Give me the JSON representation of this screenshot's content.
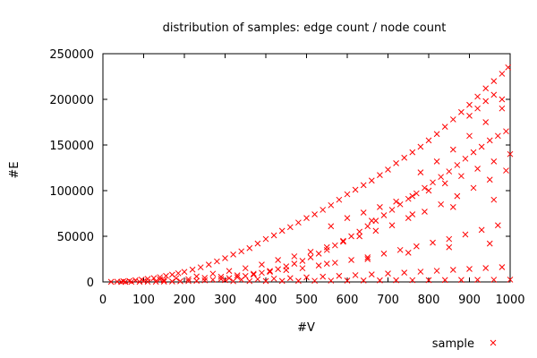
{
  "chart_data": {
    "type": "scatter",
    "title": "distribution of samples: edge count / node count",
    "xlabel": "#V",
    "ylabel": "#E",
    "xlim": [
      0,
      1000
    ],
    "ylim": [
      0,
      250000
    ],
    "x_ticks": [
      "0",
      "100",
      "200",
      "300",
      "400",
      "500",
      "600",
      "700",
      "800",
      "900",
      "1000"
    ],
    "y_ticks": [
      "0",
      "50000",
      "100000",
      "150000",
      "200000",
      "250000"
    ],
    "grid": false,
    "legend": "bottom-right",
    "marker": "x",
    "series": [
      {
        "name": "sample",
        "color": "#ff0000",
        "points": [
          [
            20,
            120
          ],
          [
            35,
            300
          ],
          [
            50,
            700
          ],
          [
            65,
            1100
          ],
          [
            80,
            1800
          ],
          [
            95,
            2500
          ],
          [
            110,
            3300
          ],
          [
            125,
            4200
          ],
          [
            140,
            5200
          ],
          [
            155,
            6600
          ],
          [
            170,
            8000
          ],
          [
            185,
            9500
          ],
          [
            200,
            11000
          ],
          [
            220,
            13500
          ],
          [
            240,
            16000
          ],
          [
            260,
            19000
          ],
          [
            280,
            22500
          ],
          [
            300,
            26000
          ],
          [
            320,
            30000
          ],
          [
            340,
            33500
          ],
          [
            360,
            37000
          ],
          [
            380,
            42000
          ],
          [
            400,
            47000
          ],
          [
            420,
            51000
          ],
          [
            440,
            56000
          ],
          [
            460,
            60000
          ],
          [
            480,
            65000
          ],
          [
            500,
            70000
          ],
          [
            520,
            74000
          ],
          [
            540,
            79000
          ],
          [
            560,
            84000
          ],
          [
            580,
            90000
          ],
          [
            600,
            96000
          ],
          [
            620,
            101000
          ],
          [
            640,
            106000
          ],
          [
            660,
            111000
          ],
          [
            680,
            117000
          ],
          [
            700,
            123000
          ],
          [
            720,
            130000
          ],
          [
            740,
            136000
          ],
          [
            760,
            142000
          ],
          [
            780,
            148000
          ],
          [
            800,
            155000
          ],
          [
            820,
            162000
          ],
          [
            840,
            170000
          ],
          [
            860,
            178000
          ],
          [
            880,
            186000
          ],
          [
            900,
            194000
          ],
          [
            920,
            203000
          ],
          [
            940,
            212000
          ],
          [
            960,
            220000
          ],
          [
            980,
            228000
          ],
          [
            995,
            235000
          ],
          [
            140,
            2800
          ],
          [
            180,
            4100
          ],
          [
            230,
            6000
          ],
          [
            270,
            9000
          ],
          [
            310,
            12000
          ],
          [
            350,
            15000
          ],
          [
            390,
            19000
          ],
          [
            430,
            24000
          ],
          [
            470,
            28000
          ],
          [
            510,
            33000
          ],
          [
            550,
            38000
          ],
          [
            590,
            44000
          ],
          [
            630,
            50000
          ],
          [
            670,
            56000
          ],
          [
            710,
            62000
          ],
          [
            750,
            70000
          ],
          [
            790,
            77000
          ],
          [
            830,
            85000
          ],
          [
            870,
            94000
          ],
          [
            910,
            103000
          ],
          [
            950,
            112000
          ],
          [
            990,
            122000
          ],
          [
            100,
            900
          ],
          [
            150,
            1800
          ],
          [
            210,
            3000
          ],
          [
            250,
            4400
          ],
          [
            290,
            5600
          ],
          [
            330,
            7200
          ],
          [
            370,
            9000
          ],
          [
            410,
            11000
          ],
          [
            450,
            13000
          ],
          [
            490,
            15000
          ],
          [
            530,
            18000
          ],
          [
            570,
            21000
          ],
          [
            610,
            24000
          ],
          [
            650,
            27000
          ],
          [
            690,
            31000
          ],
          [
            730,
            35000
          ],
          [
            770,
            39000
          ],
          [
            810,
            43000
          ],
          [
            850,
            47000
          ],
          [
            890,
            52000
          ],
          [
            930,
            57000
          ],
          [
            970,
            62000
          ],
          [
            300,
            2000
          ],
          [
            340,
            2500
          ],
          [
            380,
            3000
          ],
          [
            420,
            3600
          ],
          [
            460,
            4200
          ],
          [
            500,
            5000
          ],
          [
            540,
            5800
          ],
          [
            580,
            6600
          ],
          [
            620,
            7400
          ],
          [
            660,
            8200
          ],
          [
            700,
            9200
          ],
          [
            740,
            10200
          ],
          [
            780,
            11200
          ],
          [
            820,
            12200
          ],
          [
            860,
            13200
          ],
          [
            900,
            14200
          ],
          [
            940,
            15200
          ],
          [
            980,
            16200
          ],
          [
            320,
            800
          ],
          [
            360,
            900
          ],
          [
            400,
            1000
          ],
          [
            440,
            1100
          ],
          [
            480,
            1200
          ],
          [
            520,
            1300
          ],
          [
            560,
            1400
          ],
          [
            600,
            1500
          ],
          [
            640,
            1600
          ],
          [
            680,
            1700
          ],
          [
            720,
            1800
          ],
          [
            760,
            1900
          ],
          [
            800,
            2000
          ],
          [
            840,
            2100
          ],
          [
            880,
            2200
          ],
          [
            920,
            2300
          ],
          [
            960,
            2400
          ],
          [
            1000,
            2500
          ],
          [
            600,
            70000
          ],
          [
            640,
            76000
          ],
          [
            680,
            82000
          ],
          [
            720,
            88000
          ],
          [
            760,
            94000
          ],
          [
            800,
            100000
          ],
          [
            840,
            108000
          ],
          [
            880,
            116000
          ],
          [
            920,
            124000
          ],
          [
            960,
            132000
          ],
          [
            1000,
            140000
          ],
          [
            780,
            120000
          ],
          [
            820,
            132000
          ],
          [
            860,
            145000
          ],
          [
            900,
            160000
          ],
          [
            940,
            175000
          ],
          [
            980,
            190000
          ],
          [
            550,
            20000
          ],
          [
            650,
            25000
          ],
          [
            750,
            32000
          ],
          [
            850,
            38000
          ],
          [
            950,
            42000
          ],
          [
            560,
            61000
          ],
          [
            660,
            67000
          ],
          [
            760,
            74000
          ],
          [
            860,
            82000
          ],
          [
            960,
            90000
          ],
          [
            980,
            200000
          ],
          [
            960,
            205000
          ],
          [
            940,
            198000
          ],
          [
            920,
            190000
          ],
          [
            900,
            182000
          ],
          [
            990,
            165000
          ],
          [
            970,
            160000
          ],
          [
            950,
            155000
          ],
          [
            930,
            148000
          ],
          [
            910,
            142000
          ],
          [
            890,
            135000
          ],
          [
            870,
            128000
          ],
          [
            850,
            121000
          ],
          [
            830,
            115000
          ],
          [
            810,
            109000
          ],
          [
            790,
            103000
          ],
          [
            770,
            97000
          ],
          [
            750,
            91000
          ],
          [
            730,
            85000
          ],
          [
            710,
            79000
          ],
          [
            690,
            73000
          ],
          [
            670,
            67000
          ],
          [
            650,
            61000
          ],
          [
            630,
            55000
          ],
          [
            610,
            50000
          ],
          [
            590,
            45000
          ],
          [
            570,
            40000
          ],
          [
            550,
            35000
          ],
          [
            530,
            31000
          ],
          [
            510,
            27000
          ],
          [
            490,
            23000
          ],
          [
            470,
            20000
          ],
          [
            450,
            17000
          ],
          [
            430,
            14000
          ],
          [
            410,
            12000
          ],
          [
            390,
            10000
          ],
          [
            370,
            8000
          ],
          [
            350,
            6500
          ],
          [
            330,
            5200
          ],
          [
            310,
            4200
          ],
          [
            290,
            3200
          ],
          [
            270,
            2400
          ],
          [
            250,
            1700
          ],
          [
            230,
            1200
          ],
          [
            210,
            900
          ],
          [
            190,
            700
          ],
          [
            170,
            500
          ],
          [
            150,
            350
          ],
          [
            130,
            250
          ],
          [
            110,
            170
          ],
          [
            90,
            110
          ],
          [
            70,
            70
          ],
          [
            55,
            40
          ],
          [
            45,
            25
          ]
        ]
      }
    ]
  }
}
